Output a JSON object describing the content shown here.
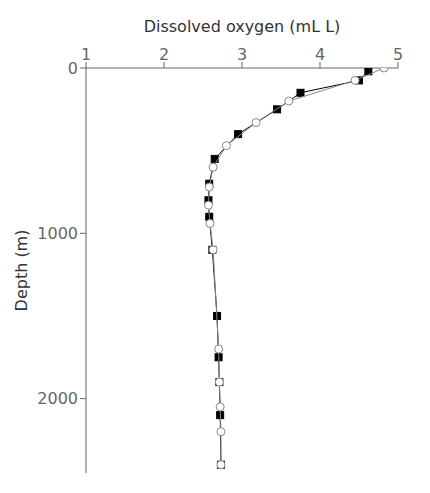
{
  "chart_data": {
    "type": "line",
    "xlabel": "Dissolved  oxygen (mL L)",
    "ylabel": "Depth  (m)",
    "xlim": [
      1,
      5
    ],
    "ylim": [
      2450,
      0
    ],
    "xticks": [
      1,
      2,
      3,
      4,
      5
    ],
    "yticks": [
      0,
      1000,
      2000
    ],
    "grid": false,
    "series": [
      {
        "color": "#000000",
        "marker": "filled_square",
        "x": [
          4.62,
          4.5,
          3.75,
          3.45,
          2.95,
          2.65,
          2.58,
          2.57,
          2.58,
          2.62,
          2.68,
          2.7,
          2.71,
          2.72,
          2.73
        ],
        "values": [
          20,
          75,
          150,
          250,
          400,
          550,
          700,
          800,
          900,
          1100,
          1500,
          1750,
          1900,
          2100,
          2400
        ]
      },
      {
        "color": "#888888",
        "marker": "open_circle",
        "x": [
          4.82,
          4.45,
          3.6,
          3.18,
          2.8,
          2.63,
          2.58,
          2.57,
          2.59,
          2.63,
          2.7,
          2.71,
          2.72,
          2.73,
          2.73
        ],
        "values": [
          0,
          75,
          200,
          330,
          470,
          600,
          720,
          830,
          940,
          1100,
          1700,
          1900,
          2050,
          2200,
          2400
        ]
      }
    ]
  }
}
